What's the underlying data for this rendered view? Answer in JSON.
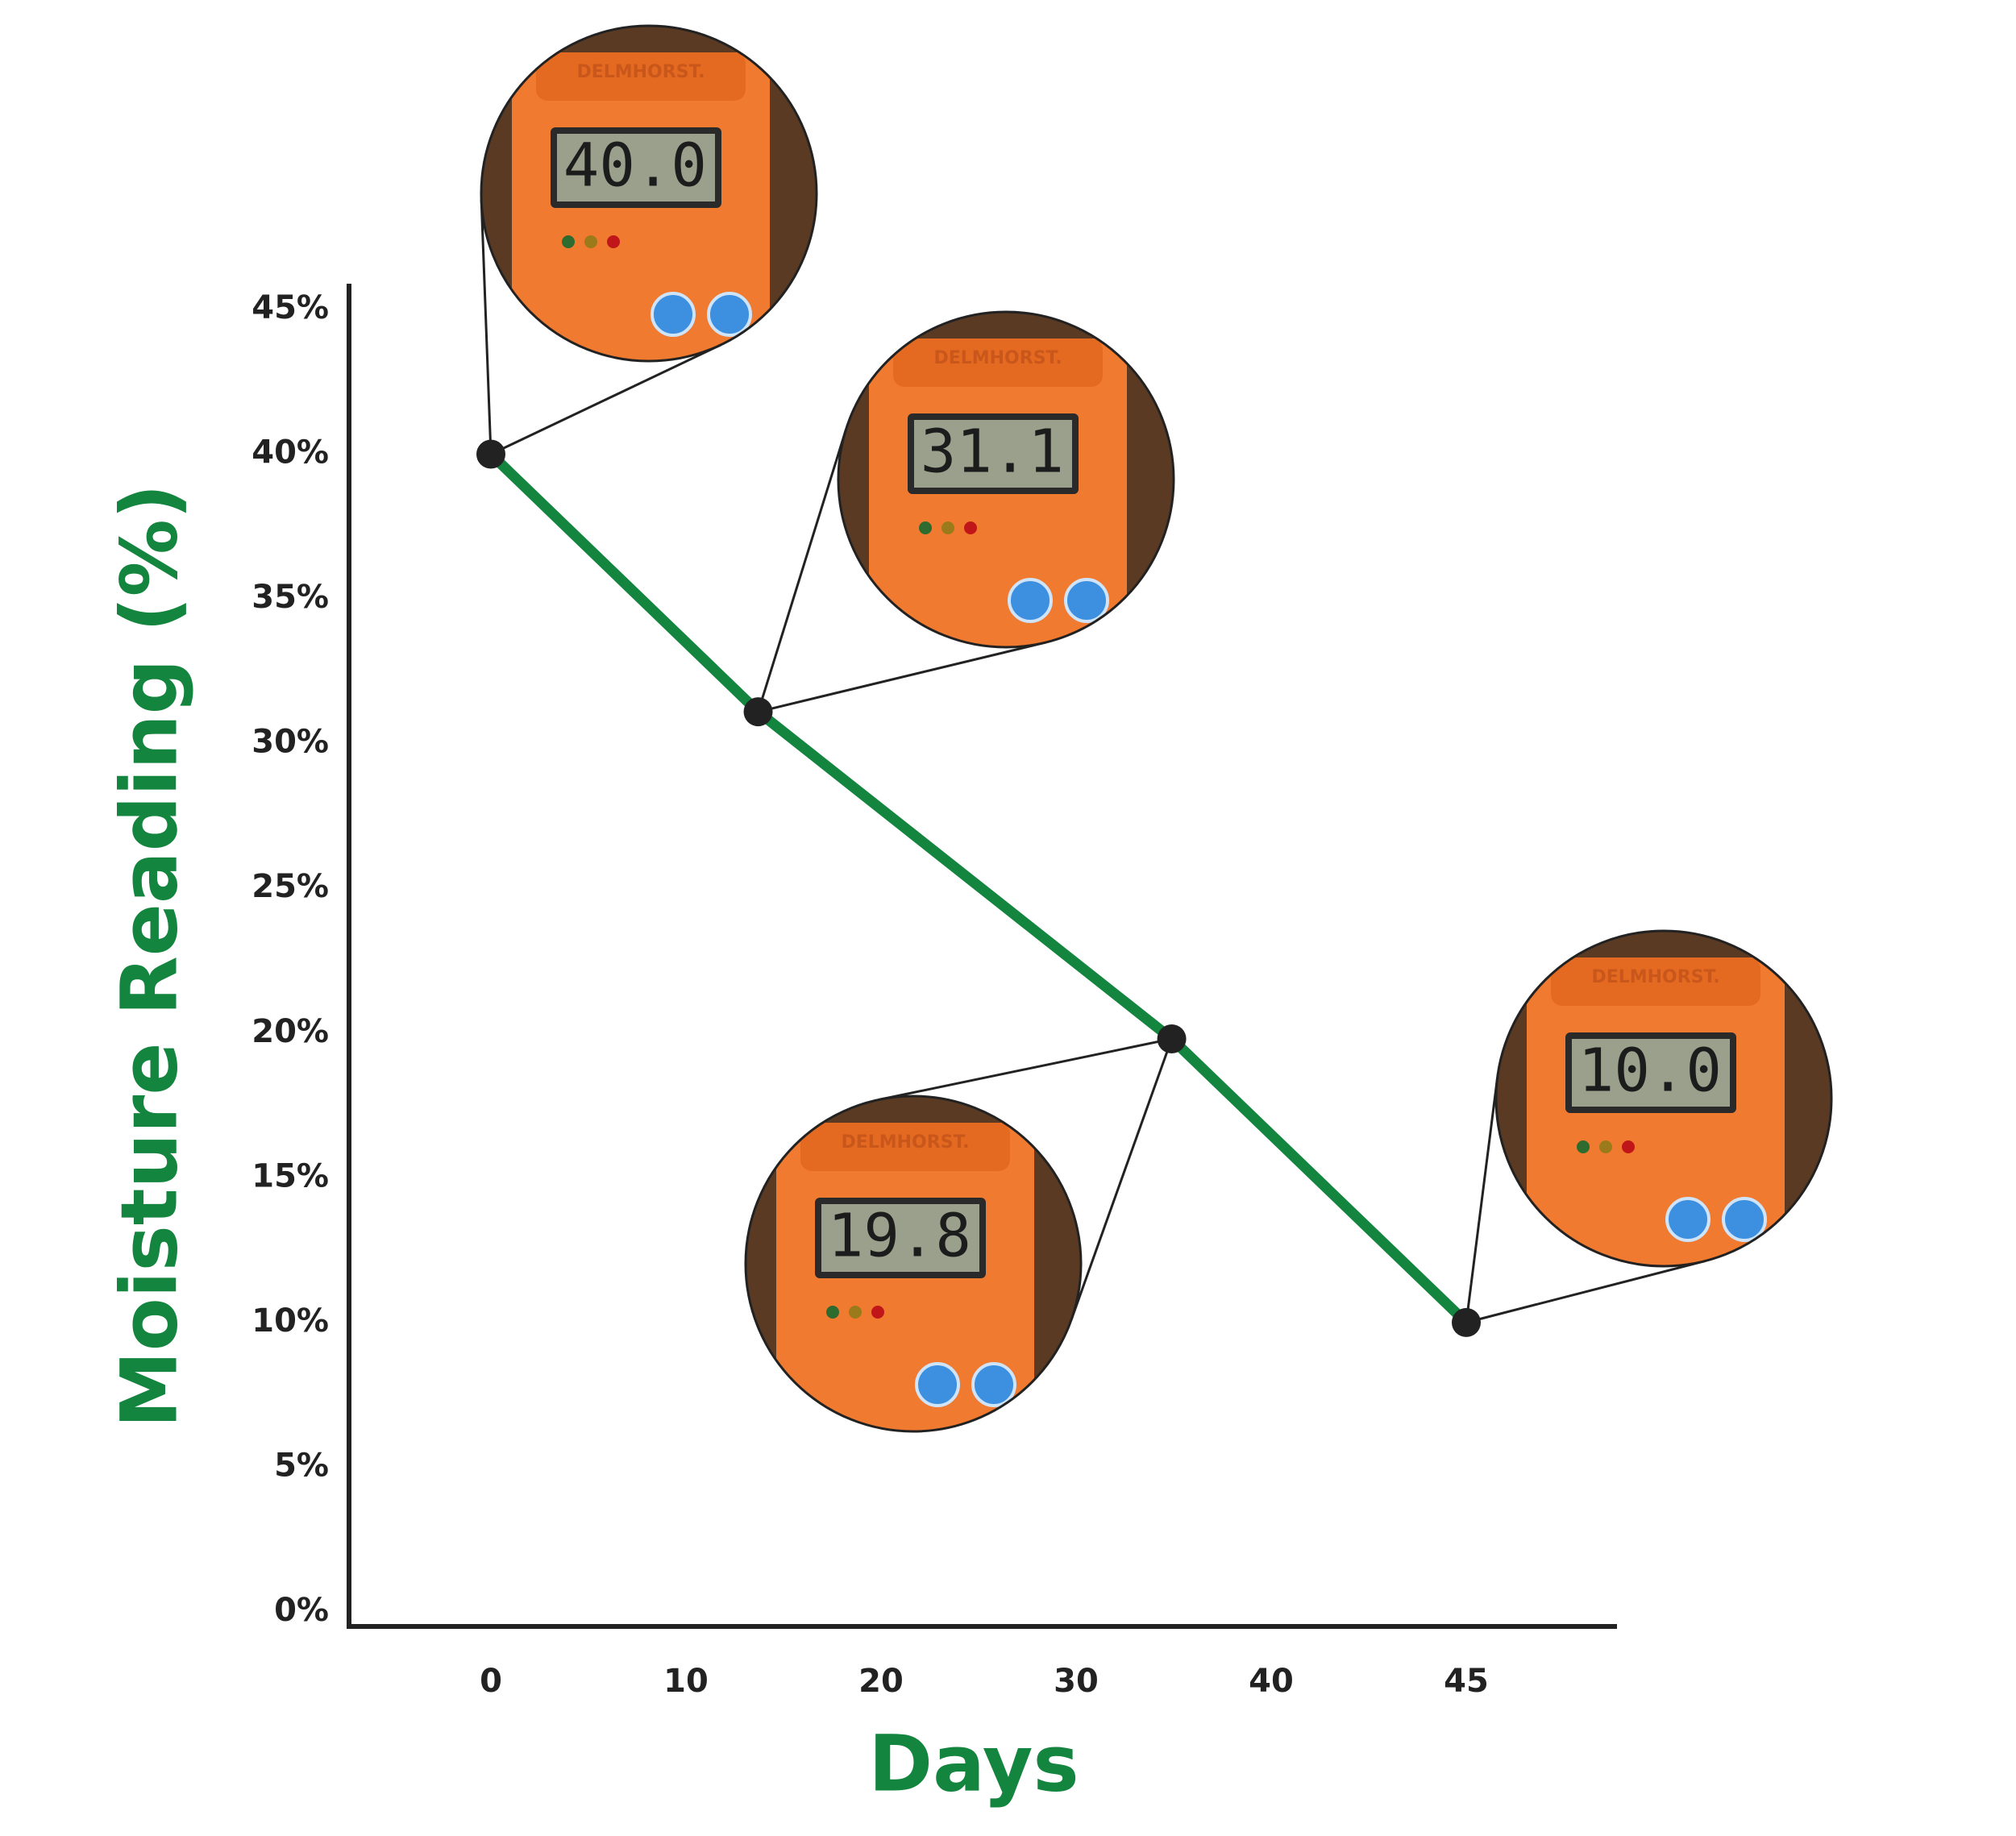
{
  "chart_data": {
    "type": "line",
    "x_label": "Days",
    "y_label": "Moisture Reading (%)",
    "x": [
      0,
      13.7,
      34.9,
      45
    ],
    "series": [
      {
        "name": "Moisture reading",
        "color": "#13853e",
        "values": [
          40,
          31.1,
          19.8,
          10
        ],
        "value_labels": [
          "40.0",
          "31.1",
          "19.8",
          "10.0"
        ]
      }
    ],
    "device_label": "DELMHORST.",
    "ylim": [
      0,
      45
    ],
    "yticks": [
      {
        "value": 0,
        "label": "0%"
      },
      {
        "value": 5,
        "label": "5%"
      },
      {
        "value": 10,
        "label": "10%"
      },
      {
        "value": 15,
        "label": "15%"
      },
      {
        "value": 20,
        "label": "20%"
      },
      {
        "value": 25,
        "label": "25%"
      },
      {
        "value": 30,
        "label": "30%"
      },
      {
        "value": 35,
        "label": "35%"
      },
      {
        "value": 40,
        "label": "40%"
      },
      {
        "value": 45,
        "label": "45%"
      }
    ],
    "xticks": [
      0,
      10,
      20,
      30,
      40,
      45
    ],
    "grid": false
  }
}
